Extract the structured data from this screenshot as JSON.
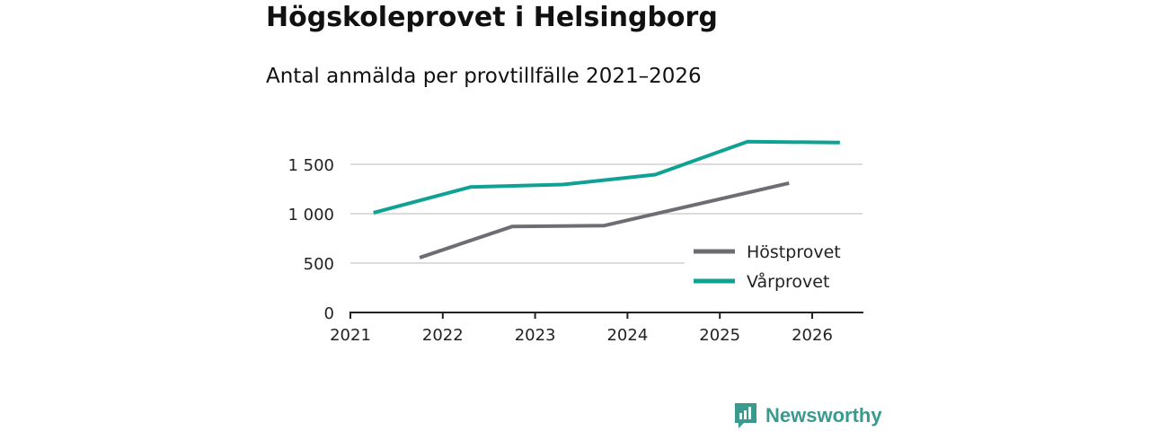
{
  "title": "Högskoleprovet i Helsingborg",
  "subtitle": "Antal anmälda per provtillfälle 2021–2026",
  "brand": "Newsworthy",
  "colors": {
    "Höstprovet": "#6e6d74",
    "Vårprovet": "#10a195"
  },
  "chart_data": {
    "type": "line",
    "title": "Högskoleprovet i Helsingborg",
    "subtitle": "Antal anmälda per provtillfälle 2021–2026",
    "xlabel": "",
    "ylabel": "",
    "xlim": [
      2021,
      2026.55
    ],
    "ylim": [
      0,
      1500
    ],
    "x_ticks": [
      "2021",
      "2022",
      "2023",
      "2024",
      "2025",
      "2026"
    ],
    "y_ticks": [
      {
        "v": 0,
        "label": "0"
      },
      {
        "v": 500,
        "label": "500"
      },
      {
        "v": 1000,
        "label": "1 000"
      },
      {
        "v": 1500,
        "label": "1 500"
      }
    ],
    "legend": "bottom-right",
    "series": [
      {
        "name": "Höstprovet",
        "x": [
          2021.75,
          2022.75,
          2023.75,
          2025.75
        ],
        "values": [
          555,
          870,
          880,
          1310
        ]
      },
      {
        "name": "Vårprovet",
        "x": [
          2021.25,
          2022.3,
          2023.3,
          2024.3,
          2025.3,
          2026.3
        ],
        "values": [
          1010,
          1270,
          1295,
          1395,
          1730,
          1720
        ]
      }
    ]
  }
}
